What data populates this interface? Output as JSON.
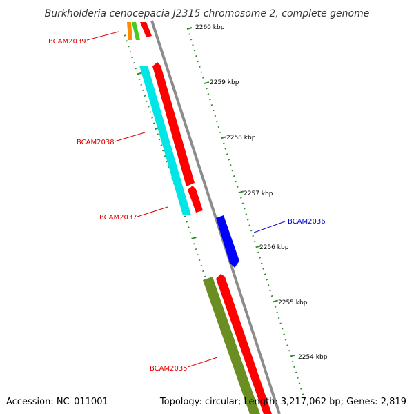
{
  "title": "Burkholderia cenocepacia J2315 chromosome 2, complete genome",
  "accession": "Accession: NC_011001",
  "topology": "Topology: circular; Length: 3,217,062 bp; Genes: 2,819",
  "colors": {
    "backbone": "#8c8c8c",
    "tick": "#2e8b2e",
    "forward_cds": "#ff0000",
    "reverse_cds": "#00e5e5",
    "highlight": "#0000ff",
    "olive": "#6b8e23",
    "orange": "#ff8c00",
    "lime": "#44cc22",
    "label_red": "#dd0000",
    "label_blue": "#0000cc"
  },
  "scale_labels": [
    "2260 kbp",
    "2259 kbp",
    "2258 kbp",
    "2257 kbp",
    "2256 kbp",
    "2255 kbp",
    "2254 kbp"
  ],
  "gene_labels": [
    {
      "name": "BCAM2039",
      "color": "label_red"
    },
    {
      "name": "BCAM2038",
      "color": "label_red"
    },
    {
      "name": "BCAM2037",
      "color": "label_red"
    },
    {
      "name": "BCAM2036",
      "color": "label_blue"
    },
    {
      "name": "BCAM2035",
      "color": "label_red"
    }
  ]
}
